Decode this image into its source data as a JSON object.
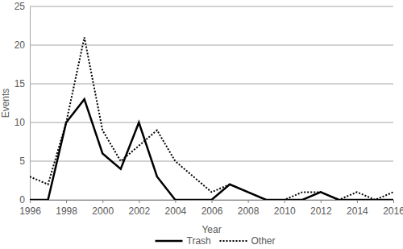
{
  "chart_data": {
    "type": "line",
    "x_label": "Year",
    "y_label": "Events",
    "x": [
      1996,
      1997,
      1998,
      1999,
      2000,
      2001,
      2002,
      2003,
      2004,
      2005,
      2006,
      2007,
      2008,
      2009,
      2010,
      2011,
      2012,
      2013,
      2014,
      2015,
      2016
    ],
    "series": [
      {
        "name": "Trash",
        "color": "#000000",
        "line_style": "solid",
        "values": [
          0,
          0,
          10,
          13,
          6,
          4,
          10,
          3,
          0,
          0,
          0,
          2,
          1,
          0,
          0,
          0,
          1,
          0,
          0,
          0,
          0
        ]
      },
      {
        "name": "Other",
        "color": "#000000",
        "line_style": "dotted",
        "values": [
          3,
          2,
          10,
          21,
          9,
          5,
          7,
          9,
          5,
          3,
          1,
          2,
          1,
          0,
          0,
          1,
          1,
          0,
          1,
          0,
          1
        ]
      }
    ],
    "xlim": [
      1996,
      2016
    ],
    "xticks": [
      1996,
      1998,
      2000,
      2002,
      2004,
      2006,
      2008,
      2010,
      2012,
      2014,
      2016
    ],
    "ylim": [
      0,
      25
    ],
    "yticks": [
      0,
      5,
      10,
      15,
      20,
      25
    ],
    "grid": true,
    "legend": "bottom"
  }
}
